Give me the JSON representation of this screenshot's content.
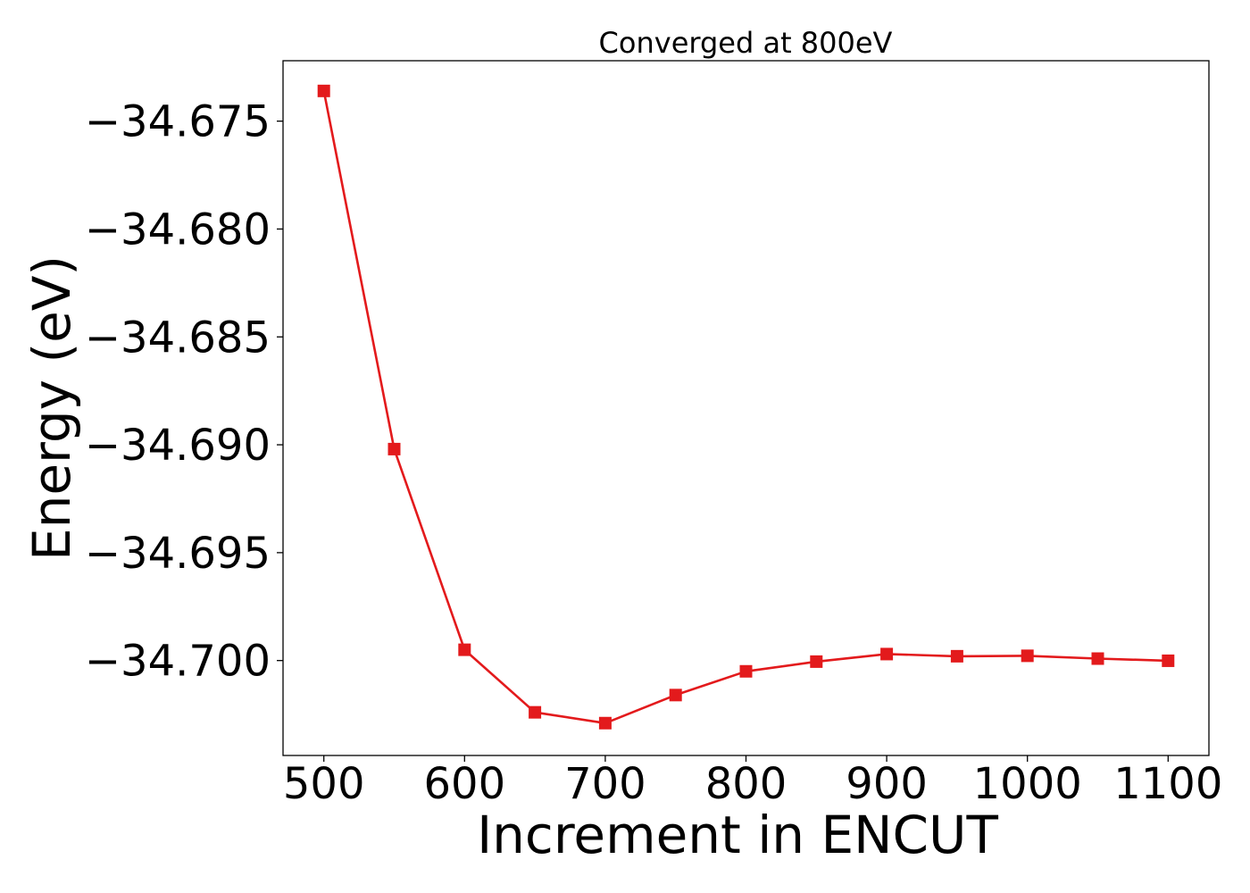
{
  "chart_data": {
    "type": "line",
    "title": "Converged at 800eV",
    "xlabel": "Increment in ENCUT",
    "ylabel": "Energy (eV)",
    "xlim": [
      471,
      1129
    ],
    "ylim": [
      -34.7044,
      -34.6722
    ],
    "x_ticks": [
      500,
      600,
      700,
      800,
      900,
      1000,
      1100
    ],
    "x_tick_labels": [
      "500",
      "600",
      "700",
      "800",
      "900",
      "1000",
      "1100"
    ],
    "y_ticks": [
      -34.675,
      -34.68,
      -34.685,
      -34.69,
      -34.695,
      -34.7
    ],
    "y_tick_labels": [
      "−34.675",
      "−34.680",
      "−34.685",
      "−34.690",
      "−34.695",
      "−34.700"
    ],
    "grid": false,
    "series": [
      {
        "color": "#e31a1c",
        "marker": "square",
        "x": [
          500,
          550,
          600,
          650,
          700,
          750,
          800,
          850,
          900,
          950,
          1000,
          1050,
          1100
        ],
        "y": [
          -34.6736,
          -34.6902,
          -34.6995,
          -34.7024,
          -34.7029,
          -34.7016,
          -34.7005,
          -34.70005,
          -34.6997,
          -34.6998,
          -34.69978,
          -34.69991,
          -34.70001
        ]
      }
    ]
  }
}
